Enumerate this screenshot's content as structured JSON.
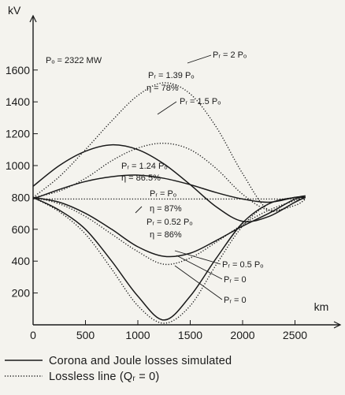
{
  "chart_data": {
    "type": "line",
    "ylabel": "kV",
    "xlabel": "km",
    "xlim": [
      0,
      2600
    ],
    "ylim": [
      0,
      1700
    ],
    "x_ticks": [
      "0",
      "500",
      "1000",
      "1500",
      "2000",
      "2500"
    ],
    "y_ticks": [
      "200",
      "400",
      "600",
      "800",
      "1000",
      "1200",
      "1400",
      "1600"
    ],
    "grid": false,
    "legend_position": "bottom",
    "legend": [
      {
        "label": "Corona and Joule losses simulated",
        "style": "solid"
      },
      {
        "label": "Lossless line (Qᵣ = 0)",
        "style": "dotted"
      }
    ],
    "annotations": [
      {
        "id": "p0",
        "text": "Pₒ = 2322 MW"
      },
      {
        "id": "pr2",
        "text": "Pᵣ = 2 Pₒ"
      },
      {
        "id": "pr139",
        "text": "Pᵣ = 1.39 Pₒ"
      },
      {
        "id": "eta78",
        "text": "η = 78%"
      },
      {
        "id": "pr15",
        "text": "Pᵣ = 1.5 Pₒ"
      },
      {
        "id": "pr124",
        "text": "Pᵣ = 1.24 Pₒ"
      },
      {
        "id": "eta865",
        "text": "η = 86.5%"
      },
      {
        "id": "prp0",
        "text": "Pᵣ = Pₒ"
      },
      {
        "id": "eta87",
        "text": "η = 87%"
      },
      {
        "id": "pr052",
        "text": "Pᵣ = 0.52 Pₒ"
      },
      {
        "id": "eta86",
        "text": "η = 86%"
      },
      {
        "id": "pr05",
        "text": "Pᵣ = 0.5 Pₒ"
      },
      {
        "id": "pr0a",
        "text": "Pᵣ = 0"
      },
      {
        "id": "pr0b",
        "text": "Pᵣ = 0"
      }
    ],
    "series": [
      {
        "label_ref": "pr2",
        "style": "dotted",
        "x": [
          0,
          250,
          500,
          750,
          1000,
          1250,
          1500,
          1750,
          2000,
          2250,
          2500,
          2600
        ],
        "y": [
          800,
          930,
          1100,
          1280,
          1440,
          1520,
          1450,
          1240,
          950,
          720,
          770,
          810
        ]
      },
      {
        "label_ref": "pr139",
        "style": "solid",
        "x": [
          0,
          250,
          500,
          750,
          1000,
          1250,
          1500,
          1750,
          2000,
          2250,
          2500,
          2600
        ],
        "y": [
          870,
          1000,
          1090,
          1130,
          1100,
          1010,
          880,
          740,
          650,
          680,
          770,
          800
        ]
      },
      {
        "label_ref": "pr15",
        "style": "dotted",
        "x": [
          0,
          250,
          500,
          750,
          1000,
          1250,
          1500,
          1750,
          2000,
          2250,
          2500,
          2600
        ],
        "y": [
          800,
          840,
          920,
          1030,
          1110,
          1140,
          1100,
          980,
          820,
          720,
          750,
          790
        ]
      },
      {
        "label_ref": "pr124",
        "style": "solid",
        "x": [
          0,
          250,
          500,
          750,
          1000,
          1250,
          1500,
          1750,
          2000,
          2250,
          2500,
          2600
        ],
        "y": [
          790,
          850,
          900,
          930,
          940,
          920,
          880,
          830,
          790,
          770,
          800,
          810
        ]
      },
      {
        "label_ref": "prp0",
        "style": "dotted",
        "x": [
          0,
          250,
          500,
          750,
          1000,
          1250,
          1500,
          1750,
          2000,
          2250,
          2500,
          2600
        ],
        "y": [
          790,
          790,
          790,
          790,
          790,
          790,
          790,
          790,
          790,
          790,
          790,
          790
        ]
      },
      {
        "label_ref": "pr052",
        "style": "solid",
        "x": [
          0,
          250,
          500,
          750,
          1000,
          1250,
          1500,
          1750,
          2000,
          2250,
          2500,
          2600
        ],
        "y": [
          800,
          770,
          700,
          600,
          490,
          430,
          450,
          530,
          620,
          700,
          790,
          800
        ]
      },
      {
        "label_ref": "pr05",
        "style": "dotted",
        "x": [
          0,
          250,
          500,
          750,
          1000,
          1250,
          1500,
          1750,
          2000,
          2250,
          2500,
          2600
        ],
        "y": [
          800,
          760,
          680,
          570,
          460,
          380,
          420,
          520,
          630,
          720,
          780,
          800
        ]
      },
      {
        "label_ref": "pr0a",
        "style": "solid",
        "x": [
          0,
          250,
          500,
          750,
          1000,
          1250,
          1500,
          1750,
          2000,
          2250,
          2500,
          2600
        ],
        "y": [
          800,
          720,
          600,
          400,
          180,
          30,
          180,
          420,
          640,
          760,
          800,
          800
        ]
      },
      {
        "label_ref": "pr0b",
        "style": "dotted",
        "x": [
          0,
          250,
          500,
          750,
          1000,
          1250,
          1500,
          1750,
          2000,
          2250,
          2500,
          2600
        ],
        "y": [
          800,
          710,
          570,
          350,
          120,
          10,
          120,
          380,
          620,
          760,
          800,
          800
        ]
      }
    ]
  }
}
